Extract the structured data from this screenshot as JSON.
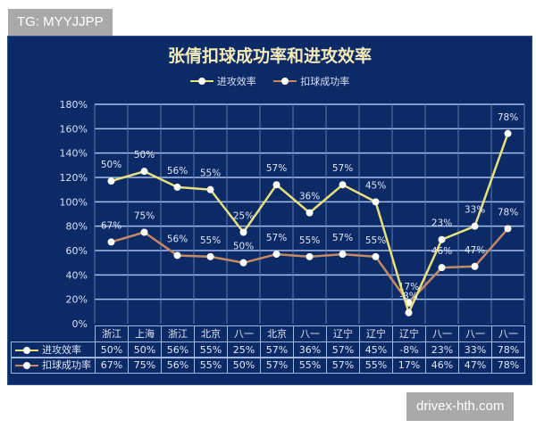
{
  "watermarks": {
    "top": "TG: MYYJJPP",
    "bottom": "drivex-hth.com"
  },
  "colors": {
    "background": "#0c2a66",
    "attack": "#e8e07a",
    "spike": "#c58a62",
    "grid": "#a9c0ea",
    "marker": "#ffffff"
  },
  "chart_data": {
    "type": "line",
    "stacked": true,
    "title": "张倩扣球成功率和进攻效率",
    "xlabel": "",
    "ylabel": "",
    "ylim": [
      0,
      180
    ],
    "yticks": [
      "0%",
      "20%",
      "40%",
      "60%",
      "80%",
      "100%",
      "120%",
      "140%",
      "160%",
      "180%"
    ],
    "grid": true,
    "legend_position": "top",
    "categories": [
      "浙江",
      "上海",
      "浙江",
      "北京",
      "八一",
      "北京",
      "八一",
      "辽宁",
      "辽宁",
      "辽宁",
      "八一",
      "八一",
      "八一"
    ],
    "series": [
      {
        "name": "进攻效率",
        "color": "#e8e07a",
        "values": [
          50,
          50,
          56,
          55,
          25,
          57,
          36,
          57,
          45,
          -8,
          23,
          33,
          78
        ],
        "labels": [
          "50%",
          "50%",
          "56%",
          "55%",
          "25%",
          "57%",
          "36%",
          "57%",
          "45%",
          "-8%",
          "23%",
          "33%",
          "78%"
        ]
      },
      {
        "name": "扣球成功率",
        "color": "#c58a62",
        "values": [
          67,
          75,
          56,
          55,
          50,
          57,
          55,
          57,
          55,
          17,
          46,
          47,
          78
        ],
        "labels": [
          "67%",
          "75%",
          "56%",
          "55%",
          "50%",
          "57%",
          "55%",
          "57%",
          "55%",
          "17%",
          "46%",
          "47%",
          "78%"
        ]
      }
    ],
    "data_table": true
  },
  "legend": [
    {
      "label": "进攻效率"
    },
    {
      "label": "扣球成功率"
    }
  ]
}
